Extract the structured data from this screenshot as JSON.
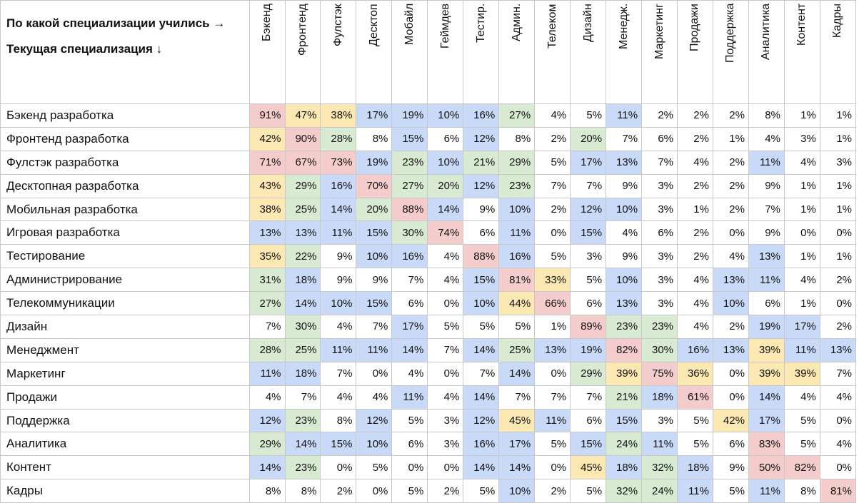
{
  "table": {
    "corner_top": "По какой специализации учились →",
    "corner_bottom": "Текущая специализация ↓",
    "columns": [
      "Бэкенд",
      "Фронтенд",
      "Фулстэк",
      "Десктоп",
      "Мобайл",
      "Геймдев",
      "Тестир.",
      "Админ.",
      "Телеком",
      "Дизайн",
      "Менедж.",
      "Маркетинг",
      "Продажи",
      "Поддержка",
      "Аналитика",
      "Контент",
      "Кадры"
    ],
    "palette": {
      "r": "#f4cccc",
      "y": "#fce8b2",
      "g": "#d9ead3",
      "b": "#c9daf8",
      "w": "#ffffff"
    },
    "rows": [
      {
        "label": "Бэкенд разработка",
        "cells": [
          "91%",
          "47%",
          "38%",
          "17%",
          "19%",
          "10%",
          "16%",
          "27%",
          "4%",
          "5%",
          "11%",
          "2%",
          "2%",
          "2%",
          "8%",
          "1%",
          "1%"
        ],
        "colors": "ryybbbbgwwbwwwwww"
      },
      {
        "label": "Фронтенд разработка",
        "cells": [
          "42%",
          "90%",
          "28%",
          "8%",
          "15%",
          "6%",
          "12%",
          "8%",
          "2%",
          "20%",
          "7%",
          "6%",
          "2%",
          "1%",
          "4%",
          "3%",
          "1%"
        ],
        "colors": "yrgwbwbwwgwwwwwww"
      },
      {
        "label": "Фулстэк разработка",
        "cells": [
          "71%",
          "67%",
          "73%",
          "19%",
          "23%",
          "10%",
          "21%",
          "29%",
          "5%",
          "17%",
          "13%",
          "7%",
          "4%",
          "2%",
          "11%",
          "4%",
          "3%"
        ],
        "colors": "rrrbgbggwbbwwwbww"
      },
      {
        "label": "Десктопная разработка",
        "cells": [
          "43%",
          "29%",
          "16%",
          "70%",
          "27%",
          "20%",
          "12%",
          "23%",
          "7%",
          "7%",
          "9%",
          "3%",
          "2%",
          "2%",
          "9%",
          "1%",
          "1%"
        ],
        "colors": "ygbrggbgwwwwwwwww"
      },
      {
        "label": "Мобильная разработка",
        "cells": [
          "38%",
          "25%",
          "14%",
          "20%",
          "88%",
          "14%",
          "9%",
          "10%",
          "2%",
          "12%",
          "10%",
          "3%",
          "1%",
          "2%",
          "7%",
          "1%",
          "1%"
        ],
        "colors": "ygbgrbwbwbbwwwwww"
      },
      {
        "label": "Игровая разработка",
        "cells": [
          "13%",
          "13%",
          "11%",
          "15%",
          "30%",
          "74%",
          "6%",
          "11%",
          "0%",
          "15%",
          "4%",
          "6%",
          "2%",
          "0%",
          "9%",
          "0%",
          "0%"
        ],
        "colors": "bbbbgrwbwbwwwwwww"
      },
      {
        "label": "Тестирование",
        "cells": [
          "35%",
          "22%",
          "9%",
          "10%",
          "16%",
          "4%",
          "88%",
          "16%",
          "5%",
          "3%",
          "9%",
          "3%",
          "2%",
          "4%",
          "13%",
          "1%",
          "1%"
        ],
        "colors": "ygwbbwrbwwwwwwbww"
      },
      {
        "label": "Администрирование",
        "cells": [
          "31%",
          "18%",
          "9%",
          "9%",
          "7%",
          "4%",
          "15%",
          "81%",
          "33%",
          "5%",
          "10%",
          "3%",
          "4%",
          "13%",
          "11%",
          "4%",
          "2%"
        ],
        "colors": "gbwwwwbrywbwwbbww"
      },
      {
        "label": "Телекоммуникации",
        "cells": [
          "27%",
          "14%",
          "10%",
          "15%",
          "6%",
          "0%",
          "10%",
          "44%",
          "66%",
          "6%",
          "13%",
          "3%",
          "4%",
          "10%",
          "6%",
          "1%",
          "0%"
        ],
        "colors": "gbbbwwbyrwbwwbwww"
      },
      {
        "label": "Дизайн",
        "cells": [
          "7%",
          "30%",
          "4%",
          "7%",
          "17%",
          "5%",
          "5%",
          "5%",
          "1%",
          "89%",
          "23%",
          "23%",
          "4%",
          "2%",
          "19%",
          "17%",
          "2%"
        ],
        "colors": "wgwwbwwwwrggwwbbw"
      },
      {
        "label": "Менеджмент",
        "cells": [
          "28%",
          "25%",
          "11%",
          "11%",
          "14%",
          "7%",
          "14%",
          "25%",
          "13%",
          "19%",
          "82%",
          "30%",
          "16%",
          "13%",
          "39%",
          "11%",
          "13%"
        ],
        "colors": "ggbbbwbgbbrgbbybb"
      },
      {
        "label": "Маркетинг",
        "cells": [
          "11%",
          "18%",
          "7%",
          "0%",
          "4%",
          "0%",
          "7%",
          "14%",
          "0%",
          "29%",
          "39%",
          "75%",
          "36%",
          "0%",
          "39%",
          "39%",
          "7%"
        ],
        "colors": "bbwwwwwbwgyrywyyw"
      },
      {
        "label": "Продажи",
        "cells": [
          "4%",
          "7%",
          "4%",
          "4%",
          "11%",
          "4%",
          "14%",
          "7%",
          "7%",
          "7%",
          "21%",
          "18%",
          "61%",
          "0%",
          "14%",
          "4%",
          "4%"
        ],
        "colors": "wwwwbwbwwwgbrwbww"
      },
      {
        "label": "Поддержка",
        "cells": [
          "12%",
          "23%",
          "8%",
          "12%",
          "5%",
          "3%",
          "12%",
          "45%",
          "11%",
          "6%",
          "15%",
          "3%",
          "5%",
          "42%",
          "17%",
          "5%",
          "0%"
        ],
        "colors": "bgwbwwbybwbwwybww"
      },
      {
        "label": "Аналитика",
        "cells": [
          "29%",
          "14%",
          "15%",
          "10%",
          "6%",
          "3%",
          "16%",
          "17%",
          "5%",
          "15%",
          "24%",
          "11%",
          "5%",
          "6%",
          "83%",
          "5%",
          "4%"
        ],
        "colors": "gbbbwwbbwbgbwwrww"
      },
      {
        "label": "Контент",
        "cells": [
          "14%",
          "23%",
          "0%",
          "5%",
          "0%",
          "0%",
          "14%",
          "14%",
          "0%",
          "45%",
          "18%",
          "32%",
          "18%",
          "9%",
          "50%",
          "82%",
          "0%"
        ],
        "colors": "bgwwwwbbwybgbwrrw"
      },
      {
        "label": "Кадры",
        "cells": [
          "8%",
          "8%",
          "2%",
          "0%",
          "5%",
          "2%",
          "5%",
          "10%",
          "2%",
          "5%",
          "32%",
          "24%",
          "11%",
          "5%",
          "11%",
          "8%",
          "81%"
        ],
        "colors": "wwwwwwwbwwggbwbwr"
      }
    ]
  }
}
